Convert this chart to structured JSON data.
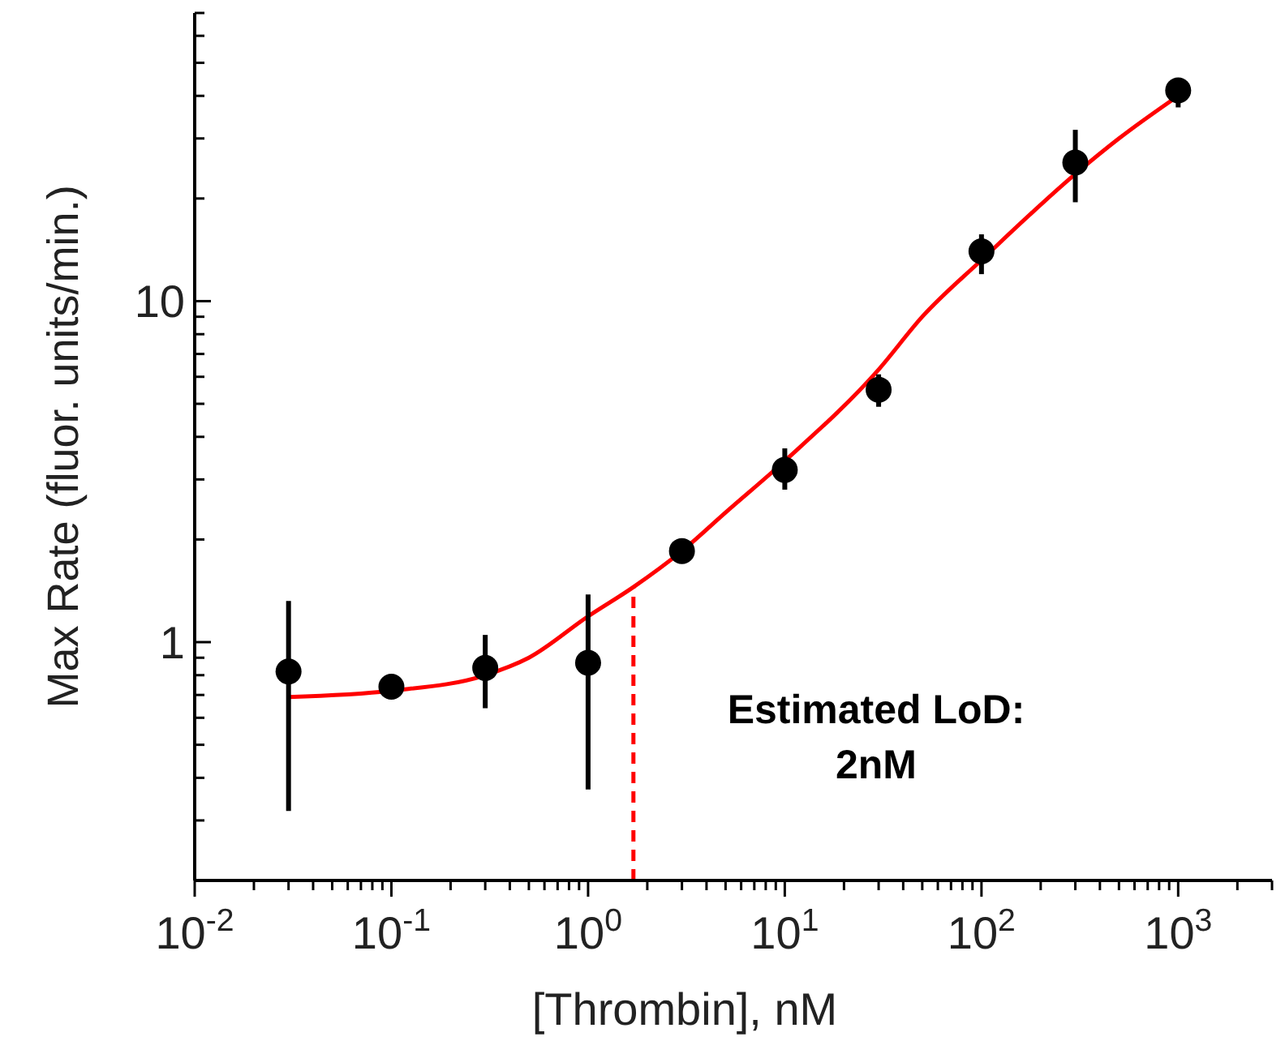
{
  "chart_data": {
    "type": "scatter",
    "xlabel": "[Thrombin], nM",
    "ylabel": "Max Rate (fluor. units/min.)",
    "log": "xy",
    "grid": false,
    "marker": "circle",
    "xlim": [
      0.01,
      3000
    ],
    "ylim": [
      0.2,
      70
    ],
    "xticks": [
      {
        "value": 0.01,
        "label": "10$^{-2}$"
      },
      {
        "value": 0.02,
        "label": null
      },
      {
        "value": 0.03,
        "label": null
      },
      {
        "value": 0.04,
        "label": null
      },
      {
        "value": 0.05,
        "label": null
      },
      {
        "value": 0.06,
        "label": null
      },
      {
        "value": 0.07,
        "label": null
      },
      {
        "value": 0.08,
        "label": null
      },
      {
        "value": 0.09,
        "label": null
      },
      {
        "value": 0.1,
        "label": "10$^{-1}$"
      },
      {
        "value": 0.2,
        "label": null
      },
      {
        "value": 0.3,
        "label": null
      },
      {
        "value": 0.4,
        "label": null
      },
      {
        "value": 0.5,
        "label": null
      },
      {
        "value": 0.6,
        "label": null
      },
      {
        "value": 0.7,
        "label": null
      },
      {
        "value": 0.8,
        "label": null
      },
      {
        "value": 0.9,
        "label": null
      },
      {
        "value": 1,
        "label": "10$^{0}$"
      },
      {
        "value": 2,
        "label": null
      },
      {
        "value": 3,
        "label": null
      },
      {
        "value": 4,
        "label": null
      },
      {
        "value": 5,
        "label": null
      },
      {
        "value": 6,
        "label": null
      },
      {
        "value": 7,
        "label": null
      },
      {
        "value": 8,
        "label": null
      },
      {
        "value": 9,
        "label": null
      },
      {
        "value": 10,
        "label": "10$^{1}$"
      },
      {
        "value": 20,
        "label": null
      },
      {
        "value": 30,
        "label": null
      },
      {
        "value": 40,
        "label": null
      },
      {
        "value": 50,
        "label": null
      },
      {
        "value": 60,
        "label": null
      },
      {
        "value": 70,
        "label": null
      },
      {
        "value": 80,
        "label": null
      },
      {
        "value": 90,
        "label": null
      },
      {
        "value": 100,
        "label": "10$^{2}$"
      },
      {
        "value": 200,
        "label": null
      },
      {
        "value": 300,
        "label": null
      },
      {
        "value": 400,
        "label": null
      },
      {
        "value": 500,
        "label": null
      },
      {
        "value": 600,
        "label": null
      },
      {
        "value": 700,
        "label": null
      },
      {
        "value": 800,
        "label": null
      },
      {
        "value": 900,
        "label": null
      },
      {
        "value": 1000,
        "label": "10$^{3}$"
      },
      {
        "value": 2000,
        "label": null
      },
      {
        "value": 3000,
        "label": null
      }
    ],
    "yticks": [
      {
        "value": 0.2,
        "label": null
      },
      {
        "value": 0.3,
        "label": null
      },
      {
        "value": 0.4,
        "label": null
      },
      {
        "value": 0.5,
        "label": null
      },
      {
        "value": 0.6,
        "label": null
      },
      {
        "value": 0.7,
        "label": null
      },
      {
        "value": 0.8,
        "label": null
      },
      {
        "value": 0.9,
        "label": null
      },
      1,
      {
        "value": 2,
        "label": null
      },
      {
        "value": 3,
        "label": null
      },
      {
        "value": 4,
        "label": null
      },
      {
        "value": 5,
        "label": null
      },
      {
        "value": 6,
        "label": null
      },
      {
        "value": 7,
        "label": null
      },
      {
        "value": 8,
        "label": null
      },
      {
        "value": 9,
        "label": null
      },
      10,
      {
        "value": 20,
        "label": null
      },
      {
        "value": 30,
        "label": null
      },
      {
        "value": 40,
        "label": null
      },
      {
        "value": 50,
        "label": null
      },
      {
        "value": 60,
        "label": null
      },
      {
        "value": 70,
        "label": null
      }
    ],
    "series": [
      {
        "type": "line",
        "color": "#ff0000",
        "marker": "none",
        "line_style": "solid",
        "x": [
          0.03,
          0.1,
          0.3,
          0.5,
          1,
          1.7,
          3,
          5,
          10,
          30,
          50,
          100,
          300,
          500,
          1000
        ],
        "values": [
          0.69,
          0.72,
          0.8,
          0.9,
          1.19,
          1.45,
          1.85,
          2.4,
          3.4,
          6.3,
          9,
          13.2,
          23.6,
          30,
          40
        ]
      },
      {
        "color": "#000000",
        "x": [
          0.03,
          0.1,
          0.3,
          1,
          3,
          10,
          30,
          100,
          300,
          1000
        ],
        "values": [
          0.82,
          0.74,
          0.84,
          0.87,
          1.85,
          3.2,
          5.5,
          14,
          25.5,
          41.5
        ],
        "errors": [
          [
            0.32,
            1.32
          ],
          null,
          [
            0.64,
            1.05
          ],
          [
            0.37,
            1.38
          ],
          null,
          [
            2.8,
            3.7
          ],
          [
            4.9,
            6.1
          ],
          [
            12,
            15.7
          ],
          [
            19.5,
            31.8
          ],
          [
            37,
            44.7
          ]
        ]
      }
    ],
    "ref_lines": [
      {
        "axis": "x",
        "value": 1.7,
        "color": "#ff0000",
        "line_style": "dashed"
      }
    ],
    "annotations": [
      "Estimated LoD:\n2nM"
    ]
  }
}
